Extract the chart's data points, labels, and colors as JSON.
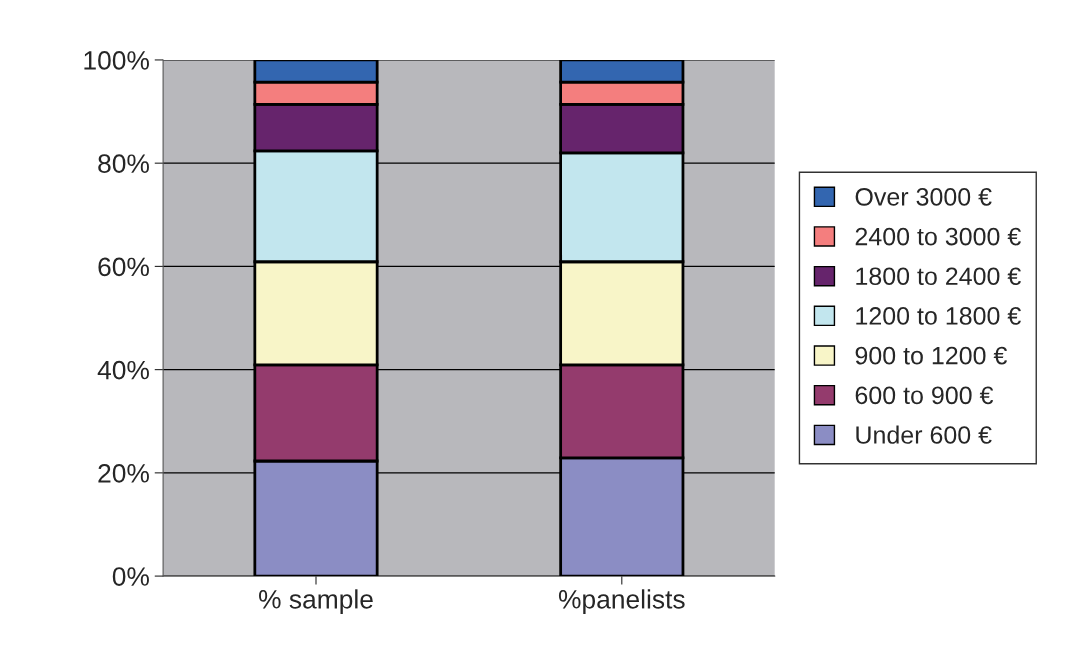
{
  "chart_data": {
    "type": "bar",
    "stacked": true,
    "categories": [
      "% sample",
      "%panelists"
    ],
    "series": [
      {
        "name": "Under 600 €",
        "color": "#8b8dc4",
        "values": [
          22.3,
          22.9
        ]
      },
      {
        "name": "600 to 900 €",
        "color": "#943b6d",
        "values": [
          18.6,
          18.0
        ]
      },
      {
        "name": "900 to 1200 €",
        "color": "#f8f5c8",
        "values": [
          20.0,
          20.0
        ]
      },
      {
        "name": "1200 to 1800 €",
        "color": "#c2e6ee",
        "values": [
          21.5,
          21.1
        ]
      },
      {
        "name": "1800 to 2400 €",
        "color": "#66246c",
        "values": [
          9.0,
          9.4
        ]
      },
      {
        "name": "2400 to 3000 €",
        "color": "#f47e7e",
        "values": [
          4.3,
          4.3
        ]
      },
      {
        "name": "Over 3000 €",
        "color": "#3366b0",
        "values": [
          4.3,
          4.3
        ]
      }
    ],
    "ylim": [
      0,
      100
    ],
    "yticks": [
      {
        "value": 0,
        "label": "0%"
      },
      {
        "value": 20,
        "label": "20%"
      },
      {
        "value": 40,
        "label": "40%"
      },
      {
        "value": 60,
        "label": "60%"
      },
      {
        "value": 80,
        "label": "80%"
      },
      {
        "value": 100,
        "label": "100%"
      }
    ],
    "grid": "y",
    "legend": "right"
  }
}
